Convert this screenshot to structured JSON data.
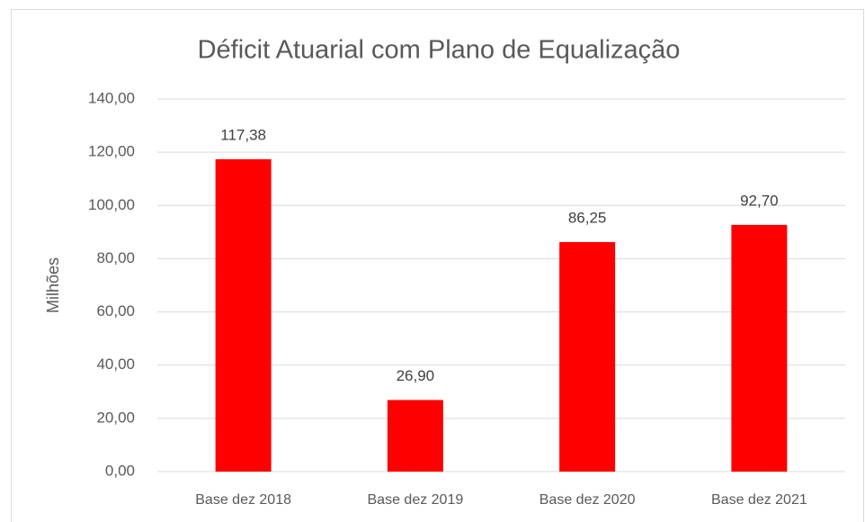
{
  "chart_data": {
    "type": "bar",
    "title": "Déficit Atuarial com Plano de Equalização",
    "y_label": "Milhões",
    "categories": [
      "Base dez 2018",
      "Base dez 2019",
      "Base dez 2020",
      "Base dez 2021"
    ],
    "values": [
      117.38,
      26.9,
      86.25,
      92.7
    ],
    "value_labels": [
      "117,38",
      "26,90",
      "86,25",
      "92,70"
    ],
    "color": "#ff0000",
    "ylim": [
      0,
      140
    ],
    "yticks": [
      {
        "value": 0,
        "label": "0,00"
      },
      {
        "value": 20,
        "label": "20,00"
      },
      {
        "value": 40,
        "label": "40,00"
      },
      {
        "value": 60,
        "label": "60,00"
      },
      {
        "value": 80,
        "label": "80,00"
      },
      {
        "value": 100,
        "label": "100,00"
      },
      {
        "value": 120,
        "label": "120,00"
      },
      {
        "value": 140,
        "label": "140,00"
      }
    ],
    "grid": true
  }
}
